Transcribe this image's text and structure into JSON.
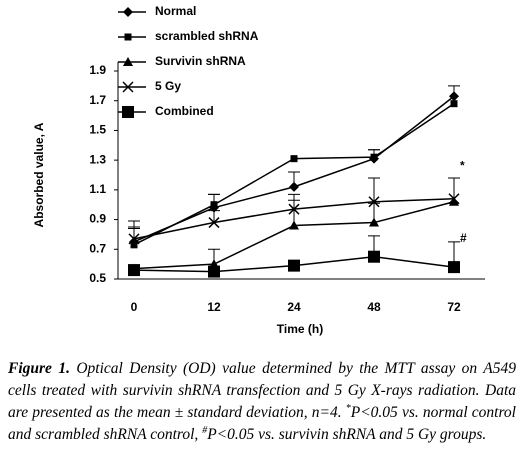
{
  "chart_data": {
    "type": "line",
    "x_label": "Time (h)",
    "y_label": "Absorbed value, A",
    "categories": [
      "0",
      "12",
      "24",
      "48",
      "72"
    ],
    "ylim": [
      0.5,
      1.9
    ],
    "yticks": [
      0.5,
      0.7,
      0.9,
      1.1,
      1.3,
      1.5,
      1.7,
      1.9
    ],
    "series": [
      {
        "name": "Normal",
        "color": "#000000",
        "marker": "diamond",
        "values": [
          0.75,
          0.98,
          1.12,
          1.31,
          1.73
        ],
        "errors": [
          0.14,
          0.09,
          0.1,
          0.06,
          0.07
        ]
      },
      {
        "name": "scrambled shRNA",
        "color": "#000000",
        "marker": "square",
        "values": [
          0.73,
          1.0,
          1.31,
          1.32,
          1.68
        ],
        "errors": [
          0.12,
          0.07,
          null,
          0.05,
          null
        ]
      },
      {
        "name": "Survivin shRNA",
        "color": "#000000",
        "marker": "triangle",
        "values": [
          0.57,
          0.6,
          0.86,
          0.88,
          1.02
        ],
        "errors": [
          null,
          0.1,
          0.17,
          0.13,
          0.16
        ]
      },
      {
        "name": "5 Gy",
        "color": "#000000",
        "marker": "x",
        "values": [
          0.77,
          0.88,
          0.97,
          1.02,
          1.04
        ],
        "errors": [
          0.07,
          0.08,
          0.1,
          0.16,
          0.14
        ]
      },
      {
        "name": "Combined",
        "color": "#000000",
        "marker": "bigsquare",
        "values": [
          0.56,
          0.55,
          0.59,
          0.65,
          0.58
        ],
        "errors": [
          null,
          null,
          null,
          0.14,
          0.17
        ]
      }
    ],
    "annotations": [
      {
        "text": "*",
        "x": "72",
        "y": 1.26
      },
      {
        "text": "#",
        "x": "72",
        "y": 0.77
      }
    ]
  },
  "caption": {
    "label": "Figure 1.",
    "text": "Optical Density (OD) value determined by the MTT assay on A549 cells treated with survivin shRNA transfection and 5 Gy X-rays radiation. Data are presented as the mean ± standard deviation, n=4. ",
    "sup1": "*",
    "text2": "P<0.05 vs. normal control and scrambled shRNA control, ",
    "sup2": "#",
    "text3": "P<0.05 vs. survivin shRNA and 5 Gy groups."
  }
}
